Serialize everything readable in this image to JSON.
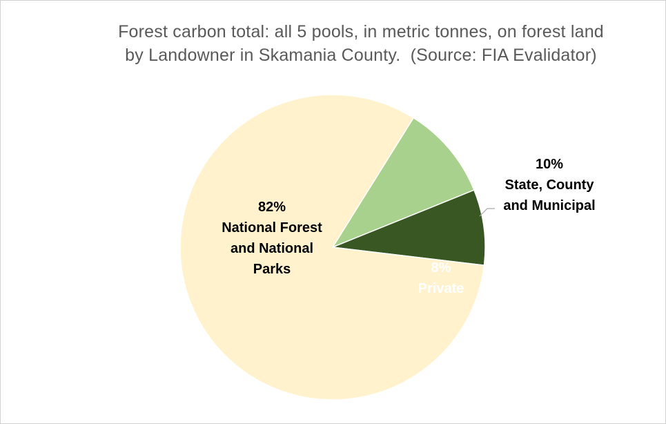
{
  "chart_data": {
    "type": "pie",
    "title_lines": [
      "Forest carbon total: all 5 pools, in metric tonnes, on forest land",
      "by Landowner in Skamania County.  (Source: FIA Evalidator)"
    ],
    "slices": [
      {
        "percent_label": "10%",
        "name_lines": [
          "State, County",
          "and Municipal"
        ],
        "value": 10,
        "color": "#a9d18e",
        "label_color": "#000000"
      },
      {
        "percent_label": "8%",
        "name_lines": [
          "Private"
        ],
        "value": 8,
        "color": "#385723",
        "label_color": "#ffffff"
      },
      {
        "percent_label": "82%",
        "name_lines": [
          "National Forest",
          "and National",
          "Parks"
        ],
        "value": 82,
        "color": "#fff2cc",
        "label_color": "#000000"
      }
    ],
    "legend": "none"
  }
}
